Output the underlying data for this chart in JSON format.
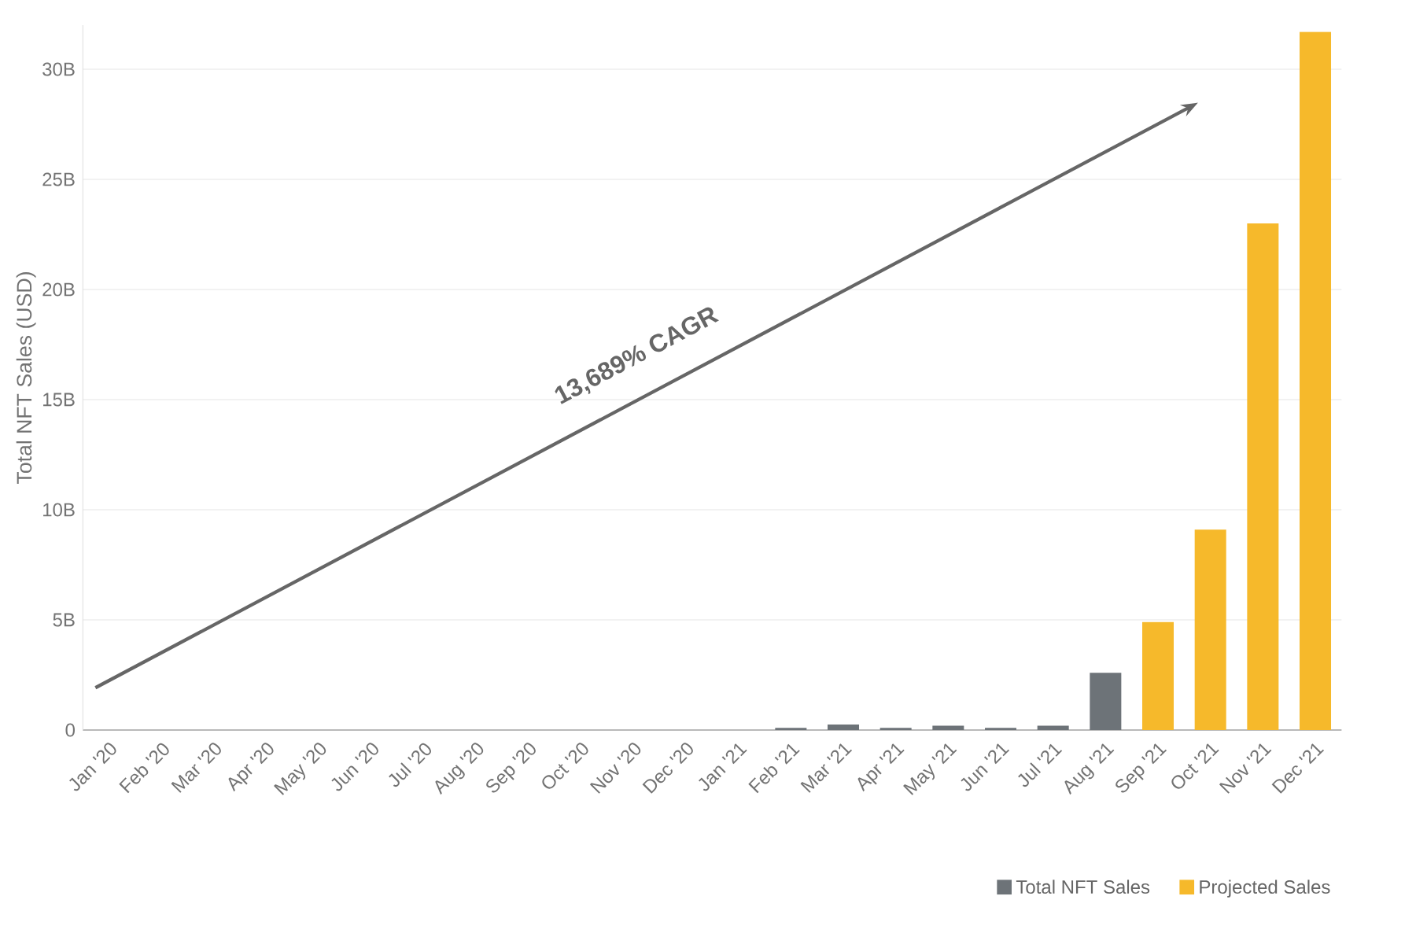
{
  "chart_data": {
    "type": "bar",
    "stacked": true,
    "categories": [
      "Jan '20",
      "Feb '20",
      "Mar '20",
      "Apr '20",
      "May '20",
      "Jun '20",
      "Jul '20",
      "Aug '20",
      "Sep '20",
      "Oct '20",
      "Nov '20",
      "Dec '20",
      "Jan '21",
      "Feb '21",
      "Mar '21",
      "Apr '21",
      "May '21",
      "Jun '21",
      "Jul '21",
      "Aug '21",
      "Sep '21",
      "Oct '21",
      "Nov '21",
      "Dec '21"
    ],
    "series": [
      {
        "name": "Total NFT Sales",
        "color": "#6d7378",
        "values": [
          0,
          0,
          0,
          0,
          0,
          0,
          0,
          0,
          0,
          0,
          0,
          0,
          0,
          0.1,
          0.25,
          0.1,
          0.2,
          0.1,
          0.2,
          2.6,
          null,
          null,
          null,
          null
        ]
      },
      {
        "name": "Projected Sales",
        "color": "#f6b92b",
        "values": [
          null,
          null,
          null,
          null,
          null,
          null,
          null,
          null,
          null,
          null,
          null,
          null,
          null,
          null,
          null,
          null,
          null,
          null,
          null,
          null,
          4.9,
          9.1,
          23,
          31.7
        ]
      }
    ],
    "ylabel": "Total NFT Sales (USD)",
    "ylim": [
      0,
      32
    ],
    "yticks": [
      0,
      {
        "value": 5,
        "label": "5B"
      },
      {
        "value": 10,
        "label": "10B"
      },
      {
        "value": 15,
        "label": "15B"
      },
      {
        "value": 20,
        "label": "20B"
      },
      {
        "value": 25,
        "label": "25B"
      },
      {
        "value": 30,
        "label": "30B"
      }
    ],
    "annotations": [
      "13,689% CAGR"
    ],
    "grid": "y",
    "legend": "bottom right"
  }
}
